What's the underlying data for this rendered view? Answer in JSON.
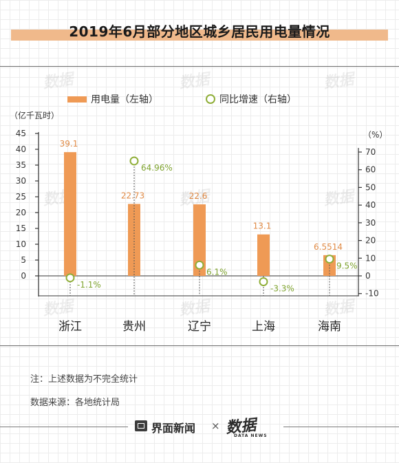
{
  "title": "2019年6月部分地区城乡居民用电量情况",
  "legend": {
    "bar_label": "用电量（左轴）",
    "ring_label": "同比增速（右轴）"
  },
  "colors": {
    "bar": "#ef9a55",
    "ring": "#8fae38",
    "bar_label": "#e08a45",
    "ring_label": "#7ea32e"
  },
  "notes": {
    "note": "注：上述数据为不完全统计",
    "source": "数据来源：各地统计局"
  },
  "footer": {
    "brand_icon": "jiemian-logo-icon",
    "brand_name": "界面新闻",
    "times": "×",
    "logo_main": "数据",
    "logo_sub": "DATA NEWS"
  },
  "watermark": "数据",
  "chart_data": {
    "type": "bar",
    "categories": [
      "浙江",
      "贵州",
      "辽宁",
      "上海",
      "海南"
    ],
    "series": [
      {
        "name": "用电量（左轴）",
        "axis": "left",
        "values": [
          39.1,
          22.73,
          22.6,
          13.1,
          6.5514
        ],
        "labels": [
          "39.1",
          "22.73",
          "22.6",
          "13.1",
          "6.5514"
        ]
      },
      {
        "name": "同比增速（右轴）",
        "axis": "right",
        "type": "scatter",
        "values": [
          -1.1,
          64.96,
          6.1,
          -3.3,
          9.5
        ],
        "labels": [
          "-1.1%",
          "64.96%",
          "6.1%",
          "-3.3%",
          "9.5%"
        ]
      }
    ],
    "left_axis": {
      "unit": "（亿千瓦时）",
      "ticks": [
        0,
        5,
        10,
        15,
        20,
        25,
        30,
        35,
        40,
        45
      ],
      "min": 0,
      "max": 45
    },
    "right_axis": {
      "unit": "（%）",
      "ticks": [
        -10,
        0,
        10,
        20,
        30,
        40,
        50,
        60,
        70
      ],
      "min": -10,
      "max": 70
    },
    "grid": false,
    "legend_position": "top-left"
  }
}
